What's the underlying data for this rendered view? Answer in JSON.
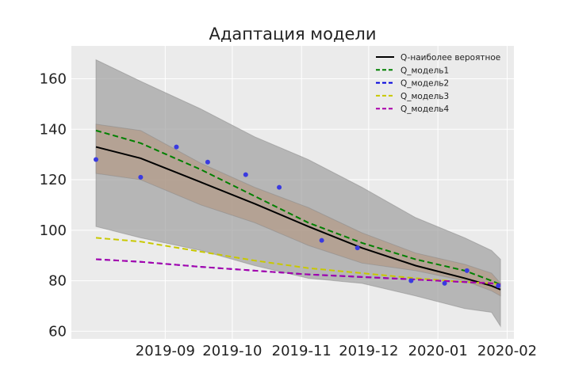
{
  "chart_data": {
    "type": "line",
    "title": "Адаптация модели",
    "xlabel": "",
    "ylabel": "",
    "x_tick_labels": [
      "2019-09",
      "2019-10",
      "2019-11",
      "2019-12",
      "2020-01",
      "2020-02"
    ],
    "x_ticks": [
      "2019-09-01",
      "2019-10-01",
      "2019-11-01",
      "2019-12-01",
      "2020-01-01",
      "2020-02-01"
    ],
    "y_ticks": [
      60,
      80,
      100,
      120,
      140,
      160
    ],
    "xlim": [
      "2019-07-21",
      "2020-02-04"
    ],
    "ylim": [
      57,
      173
    ],
    "grid": true,
    "legend_position": "top-right",
    "dates": [
      "2019-08-01",
      "2019-08-21",
      "2019-09-17",
      "2019-10-11",
      "2019-11-04",
      "2019-11-28",
      "2019-12-22",
      "2020-01-13",
      "2020-01-25",
      "2020-01-29"
    ],
    "bands": [
      {
        "name": "outer",
        "color": "#a0a0a0",
        "lower": [
          101.5,
          97,
          92,
          86,
          81,
          79,
          74,
          69,
          67.5,
          62
        ],
        "upper": [
          167.5,
          159,
          148,
          137,
          128,
          117,
          105,
          97,
          92,
          88.5
        ]
      },
      {
        "name": "inner",
        "color": "#b49a86",
        "lower": [
          122.5,
          120,
          110,
          103,
          94,
          87,
          84,
          80,
          76,
          74
        ],
        "upper": [
          142,
          139.5,
          126.5,
          117,
          109,
          99,
          91,
          86.5,
          83,
          79
        ]
      }
    ],
    "series": [
      {
        "name": "Q-наиболее вероятное",
        "color": "#000000",
        "dash": "solid",
        "values": [
          133,
          128.5,
          119,
          110.5,
          101.5,
          93,
          86,
          81,
          78,
          76.5
        ]
      },
      {
        "name": "Q_модель1",
        "color": "#008000",
        "dash": "dashed",
        "values": [
          139.5,
          134.5,
          124,
          113.5,
          103,
          95,
          88.5,
          84,
          80,
          78.5
        ]
      },
      {
        "name": "Q_модель2",
        "color": "#0000dd",
        "dash": "dashed",
        "values": [
          88.5,
          87.5,
          85.5,
          84,
          82.5,
          81.5,
          80.5,
          79.5,
          79,
          78.5
        ]
      },
      {
        "name": "Q_модель3",
        "color": "#c8c800",
        "dash": "dashed",
        "values": [
          97,
          95.5,
          91.5,
          88,
          85,
          83,
          81,
          79.5,
          79,
          78.5
        ]
      },
      {
        "name": "Q_модель4",
        "color": "#aa00aa",
        "dash": "dashed",
        "values": [
          88.5,
          87.5,
          85.5,
          84,
          82.5,
          81.5,
          80.5,
          79.5,
          79,
          78.5
        ]
      }
    ],
    "points": {
      "color": "#3a3ae0",
      "x": [
        "2019-08-01",
        "2019-08-21",
        "2019-09-06",
        "2019-09-20",
        "2019-10-07",
        "2019-10-22",
        "2019-11-10",
        "2019-11-26",
        "2019-12-20",
        "2020-01-04",
        "2020-01-14",
        "2020-01-28"
      ],
      "y": [
        128,
        121,
        133,
        127,
        122,
        117,
        96,
        93,
        80,
        79,
        84,
        78
      ]
    }
  }
}
